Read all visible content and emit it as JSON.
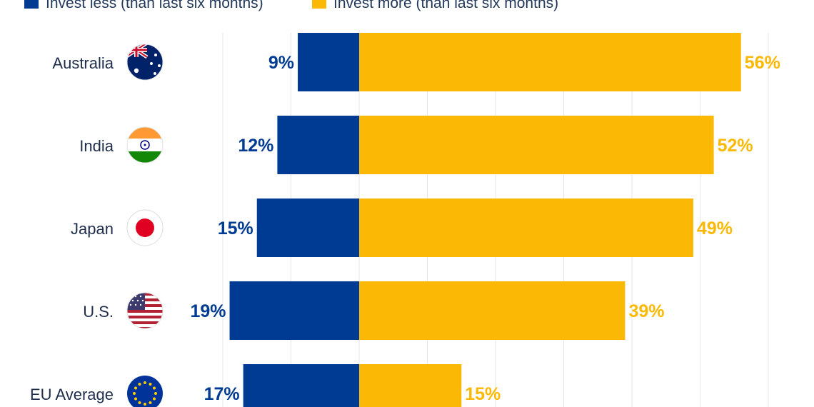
{
  "chart_data": {
    "type": "bar",
    "orientation": "horizontal-diverging",
    "categories": [
      "Australia",
      "India",
      "Japan",
      "U.S.",
      "EU Average"
    ],
    "flag_icons": [
      "australia-flag-icon",
      "india-flag-icon",
      "japan-flag-icon",
      "us-flag-icon",
      "eu-flag-icon"
    ],
    "series": [
      {
        "name": "Invest less (than last six months)",
        "values": [
          9,
          12,
          15,
          19,
          17
        ],
        "color": "#003b93"
      },
      {
        "name": "Invest more (than last six months)",
        "values": [
          56,
          52,
          49,
          39,
          15
        ],
        "color": "#fbb804"
      }
    ],
    "value_suffix": "%",
    "grid": true,
    "legend": "top-left"
  }
}
